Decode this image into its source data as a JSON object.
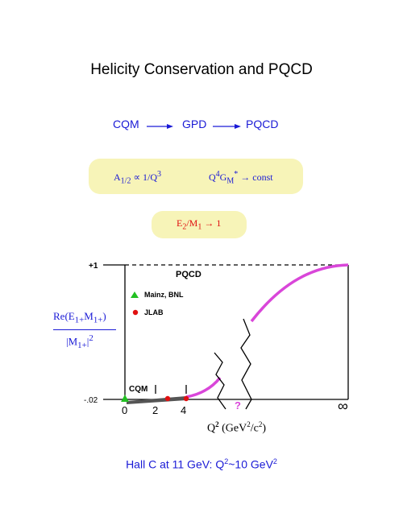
{
  "title": "Helicity Conservation and PQCD",
  "flow": {
    "step1": "CQM",
    "step2": "GPD",
    "step3": "PQCD"
  },
  "formula1": {
    "left": "A",
    "left_sub": "1/2",
    "left_rest": " ∝ 1/Q",
    "left_sup": "3",
    "right": "Q",
    "right_sup": "4",
    "right_g": "G",
    "right_sub": "M",
    "right_sup2": "*",
    "right_rest": " → const"
  },
  "formula2": {
    "a": "E",
    "a_sub": "2",
    "b": "/M",
    "b_sub": "1",
    "c": " → 1"
  },
  "chart": {
    "y_top_label": "+1",
    "y_bottom_label": "-.02",
    "x_ticks": [
      "0",
      "2",
      "4"
    ],
    "x_inf": "∞",
    "region_pqcd": "PQCD",
    "region_cqm": "CQM",
    "unknown_mark": "?",
    "legend": [
      {
        "label": "Mainz, BNL"
      },
      {
        "label": "JLAB"
      }
    ],
    "ylabel_num": "Re(E",
    "ylabel_num_sub1": "1+",
    "ylabel_num_mid": "M",
    "ylabel_num_sub2": "1+",
    "ylabel_num_end": ")",
    "ylabel_den": "|M",
    "ylabel_den_sub": "1+",
    "ylabel_den_end": "|",
    "ylabel_den_sup": "2",
    "xlabel_q": "Q",
    "xlabel_q_sup": "2",
    "xlabel_rest": " (GeV",
    "xlabel_sup2": "2",
    "xlabel_rest2": "/c",
    "xlabel_sup3": "2",
    "xlabel_end": ")"
  },
  "footer": {
    "text": "Hall C at 11 GeV:  Q",
    "sup1": "2",
    "text2": "~10 GeV",
    "sup2": "2"
  },
  "colors": {
    "blue": "#1a1ad6",
    "red": "#e01010",
    "magenta": "#d946d9",
    "green": "#22c022",
    "pill": "#f7f4b8"
  }
}
